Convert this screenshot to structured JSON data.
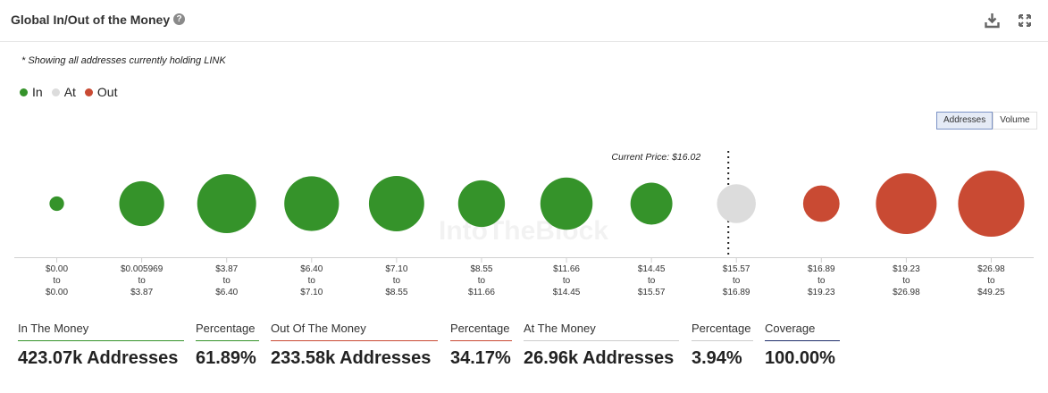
{
  "header": {
    "title": "Global In/Out of the Money",
    "help_icon": "help-icon",
    "download_icon": "download-icon",
    "expand_icon": "expand-icon"
  },
  "note": "* Showing all addresses currently holding LINK",
  "legend": [
    {
      "label": "In",
      "color": "#35932a"
    },
    {
      "label": "At",
      "color": "#dcdcdc"
    },
    {
      "label": "Out",
      "color": "#c94a33"
    }
  ],
  "toggle": {
    "addresses": "Addresses",
    "volume": "Volume",
    "selected": "Addresses"
  },
  "chart_data": {
    "type": "bubble",
    "current_price_label": "Current Price: $16.02",
    "current_price_position": "between $15.57 to $16.89 bucket",
    "watermark": "IntoTheBlock",
    "categories": [
      {
        "from": "$0.00",
        "to": "$0.00",
        "status": "In",
        "relative_size": 0.24
      },
      {
        "from": "$0.005969",
        "to": "$3.87",
        "status": "In",
        "relative_size": 0.74
      },
      {
        "from": "$3.87",
        "to": "$6.40",
        "status": "In",
        "relative_size": 0.97
      },
      {
        "from": "$6.40",
        "to": "$7.10",
        "status": "In",
        "relative_size": 0.9
      },
      {
        "from": "$7.10",
        "to": "$8.55",
        "status": "In",
        "relative_size": 0.91
      },
      {
        "from": "$8.55",
        "to": "$11.66",
        "status": "In",
        "relative_size": 0.77
      },
      {
        "from": "$11.66",
        "to": "$14.45",
        "status": "In",
        "relative_size": 0.86
      },
      {
        "from": "$14.45",
        "to": "$15.57",
        "status": "In",
        "relative_size": 0.69
      },
      {
        "from": "$15.57",
        "to": "$16.89",
        "status": "At",
        "relative_size": 0.64
      },
      {
        "from": "$16.89",
        "to": "$19.23",
        "status": "Out",
        "relative_size": 0.6
      },
      {
        "from": "$19.23",
        "to": "$26.98",
        "status": "Out",
        "relative_size": 1.0
      },
      {
        "from": "$26.98",
        "to": "$49.25",
        "status": "Out",
        "relative_size": 1.09
      }
    ],
    "range_joiner": "to",
    "colors": {
      "In": "#35932a",
      "At": "#dcdcdc",
      "Out": "#c94a33"
    }
  },
  "stats": [
    {
      "label": "In The Money",
      "value": "423.07k Addresses",
      "color": "#35932a"
    },
    {
      "label": "Percentage",
      "value": "61.89%",
      "color": "#35932a"
    },
    {
      "label": "Out Of The Money",
      "value": "233.58k Addresses",
      "color": "#c94a33"
    },
    {
      "label": "Percentage",
      "value": "34.17%",
      "color": "#c94a33"
    },
    {
      "label": "At The Money",
      "value": "26.96k Addresses",
      "color": "#cccccc"
    },
    {
      "label": "Percentage",
      "value": "3.94%",
      "color": "#cccccc"
    },
    {
      "label": "Coverage",
      "value": "100.00%",
      "color": "#1f2d6b"
    }
  ]
}
